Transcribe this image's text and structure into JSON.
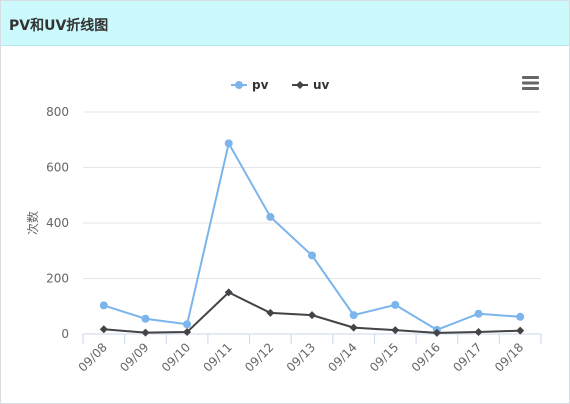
{
  "panel": {
    "title": "PV和UV折线图"
  },
  "chart_data": {
    "type": "line",
    "title": "",
    "xlabel": "",
    "ylabel": "次数",
    "categories": [
      "09/08",
      "09/09",
      "09/10",
      "09/11",
      "09/12",
      "09/13",
      "09/14",
      "09/15",
      "09/16",
      "09/17",
      "09/18"
    ],
    "ylim": [
      0,
      800
    ],
    "yticks": [
      0,
      200,
      400,
      600,
      800
    ],
    "grid": true,
    "legend_position": "top-center",
    "series": [
      {
        "name": "pv",
        "color": "#7cb5ec",
        "marker": "circle",
        "values": [
          103,
          55,
          35,
          687,
          422,
          283,
          68,
          105,
          15,
          73,
          62
        ]
      },
      {
        "name": "uv",
        "color": "#434348",
        "marker": "diamond",
        "values": [
          17,
          5,
          7,
          150,
          76,
          68,
          23,
          14,
          4,
          7,
          12
        ]
      }
    ],
    "menu_icon": "hamburger-menu-icon"
  }
}
